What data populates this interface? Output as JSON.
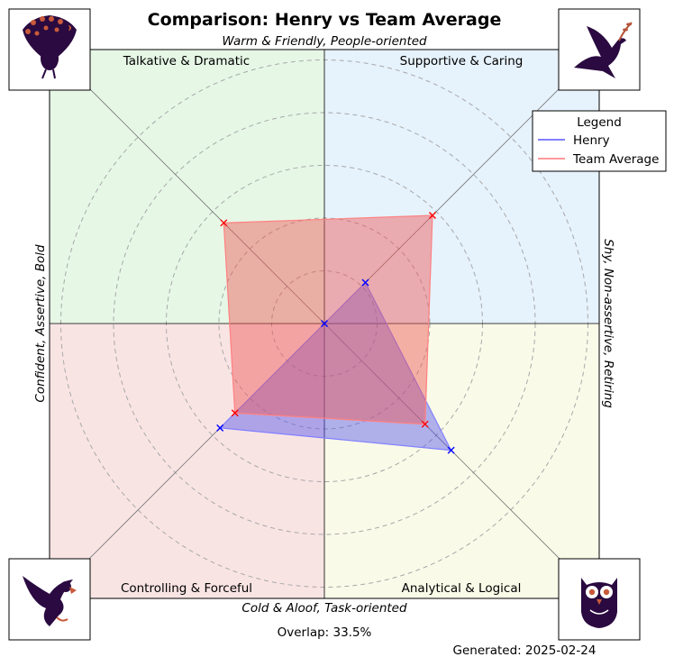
{
  "chart_data": {
    "type": "radar",
    "title": "Comparison: Henry vs Team Average",
    "axes": {
      "top": "Warm & Friendly, People-oriented",
      "bottom": "Cold & Aloof, Task-oriented",
      "left": "Confident, Assertive, Bold",
      "right": "Shy, Non-assertive, Retiring"
    },
    "quadrants": [
      {
        "label": "Talkative & Dramatic",
        "color": "#e6f7e6",
        "icon": "peacock-icon"
      },
      {
        "label": "Supportive & Caring",
        "color": "#e6f2fc",
        "icon": "dove-icon"
      },
      {
        "label": "Controlling & Forceful",
        "color": "#f9e4e4",
        "icon": "eagle-icon"
      },
      {
        "label": "Analytical & Logical",
        "color": "#fafae8",
        "icon": "owl-icon"
      }
    ],
    "directions": [
      "Supportive & Caring",
      "Analytical & Logical",
      "Controlling & Forceful",
      "Talkative & Dramatic"
    ],
    "max_radius": 5,
    "rings": [
      1,
      2,
      3,
      4,
      5
    ],
    "series": [
      {
        "name": "Henry",
        "color": "#0000ff",
        "values": [
          1.1,
          3.4,
          2.8,
          0
        ]
      },
      {
        "name": "Team Average",
        "color": "#ff0000",
        "values": [
          2.9,
          2.7,
          2.4,
          2.7
        ]
      }
    ],
    "legend": {
      "title": "Legend",
      "position": "top-right"
    },
    "overlap_text": "Overlap: 33.5%",
    "generated_text": "Generated: 2025-02-24"
  }
}
